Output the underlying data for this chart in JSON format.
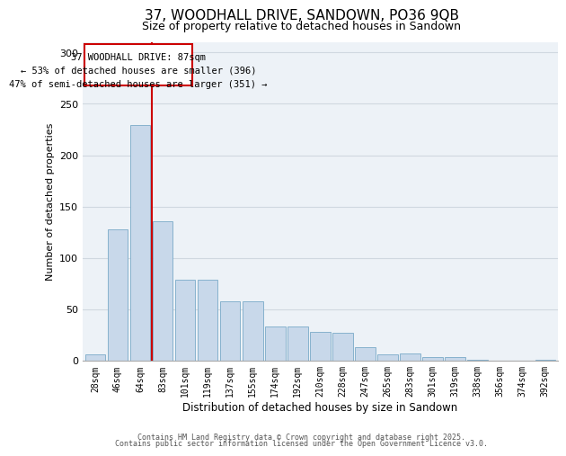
{
  "title": "37, WOODHALL DRIVE, SANDOWN, PO36 9QB",
  "subtitle": "Size of property relative to detached houses in Sandown",
  "xlabel": "Distribution of detached houses by size in Sandown",
  "ylabel": "Number of detached properties",
  "categories": [
    "28sqm",
    "46sqm",
    "64sqm",
    "83sqm",
    "101sqm",
    "119sqm",
    "137sqm",
    "155sqm",
    "174sqm",
    "192sqm",
    "210sqm",
    "228sqm",
    "247sqm",
    "265sqm",
    "283sqm",
    "301sqm",
    "319sqm",
    "338sqm",
    "356sqm",
    "374sqm",
    "392sqm"
  ],
  "values": [
    6,
    128,
    229,
    136,
    79,
    79,
    58,
    58,
    33,
    33,
    28,
    27,
    13,
    6,
    7,
    3,
    3,
    1,
    0,
    0,
    1
  ],
  "bar_color": "#c8d8ea",
  "bar_edge_color": "#7aaac8",
  "red_line_x": 2.5,
  "annotation_title": "37 WOODHALL DRIVE: 87sqm",
  "annotation_line2": "← 53% of detached houses are smaller (396)",
  "annotation_line3": "47% of semi-detached houses are larger (351) →",
  "annotation_box_color": "#ffffff",
  "annotation_border_color": "#cc0000",
  "property_line_color": "#cc0000",
  "ylim": [
    0,
    310
  ],
  "yticks": [
    0,
    50,
    100,
    150,
    200,
    250,
    300
  ],
  "grid_color": "#d0d8e0",
  "background_color": "#edf2f7",
  "footer_line1": "Contains HM Land Registry data © Crown copyright and database right 2025.",
  "footer_line2": "Contains public sector information licensed under the Open Government Licence v3.0.",
  "title_fontsize": 11,
  "subtitle_fontsize": 9,
  "tick_fontsize": 7,
  "ylabel_fontsize": 8,
  "xlabel_fontsize": 8.5,
  "footer_fontsize": 6,
  "ann_fontsize": 7.5
}
